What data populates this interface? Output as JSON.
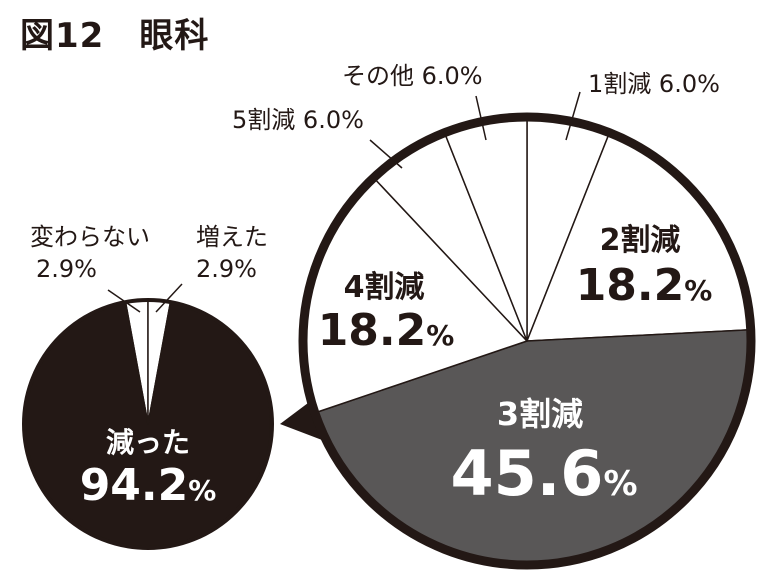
{
  "title": "図12　眼科",
  "colors": {
    "black": "#231815",
    "dark_gray": "#595757",
    "white": "#ffffff"
  },
  "chart_data": [
    {
      "type": "pie",
      "slices": [
        {
          "label": "変わらない",
          "value": 2.9,
          "value_label": "2.9%",
          "color": "#ffffff"
        },
        {
          "label": "増えた",
          "value": 2.9,
          "value_label": "2.9%",
          "color": "#ffffff"
        },
        {
          "label": "減った",
          "value": 94.2,
          "value_label": "94.2",
          "unit": "%",
          "color": "#231815"
        }
      ]
    },
    {
      "type": "pie",
      "breakdown_of": "減った",
      "slices": [
        {
          "label": "1割減",
          "value": 6.0,
          "value_label": "6.0%",
          "color": "#ffffff"
        },
        {
          "label": "2割減",
          "value": 18.2,
          "value_label": "18.2",
          "unit": "%",
          "color": "#ffffff"
        },
        {
          "label": "3割減",
          "value": 45.6,
          "value_label": "45.6",
          "unit": "%",
          "color": "#595757"
        },
        {
          "label": "4割減",
          "value": 18.2,
          "value_label": "18.2",
          "unit": "%",
          "color": "#ffffff"
        },
        {
          "label": "5割減",
          "value": 6.0,
          "value_label": "6.0%",
          "color": "#ffffff"
        },
        {
          "label": "その他",
          "value": 6.0,
          "value_label": "6.0%",
          "color": "#ffffff"
        }
      ]
    }
  ]
}
